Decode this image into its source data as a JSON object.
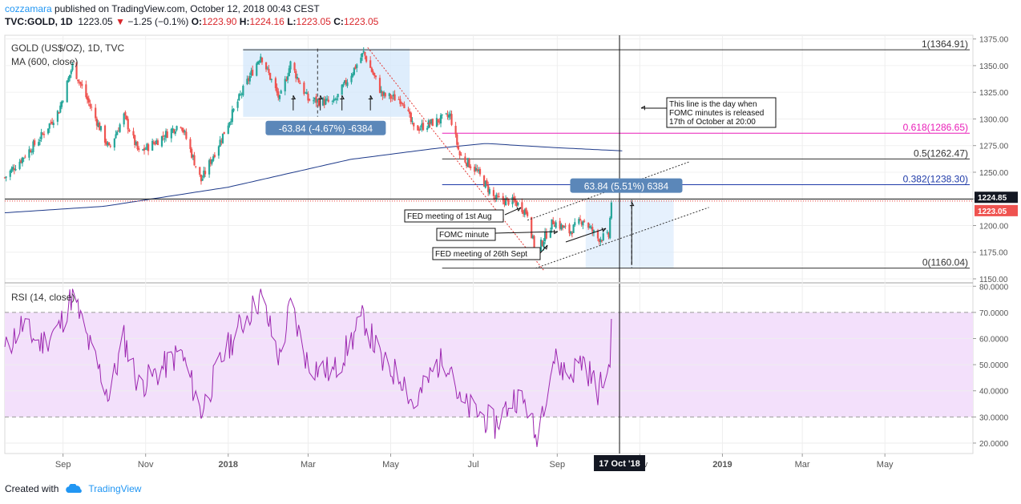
{
  "header": {
    "author": "cozzamara",
    "published": "published on TradingView.com, October 12, 2018 00:43 CEST",
    "symbol": "TVC:GOLD, 1D",
    "price": "1223.05",
    "change_arrow": "▼",
    "change": "−1.25 (−0.1%)",
    "o_label": "O:",
    "o_value": "1223.90",
    "h_label": "H:",
    "h_value": "1224.16",
    "l_label": "L:",
    "l_value": "1223.05",
    "c_label": "C:",
    "c_value": "1223.05"
  },
  "footer": {
    "created_with": "Created with",
    "brand": "TradingView"
  },
  "colors": {
    "up": "#26a69a",
    "down": "#ef5350",
    "ma": "#1e3a8a",
    "rsi": "#9c27b0",
    "rsi_band": "#f3e0fb",
    "fib_pink": "#e91eb8",
    "fib_blue": "#1e3aa8",
    "box": "#d6e8fb",
    "label_blue": "#5b87b9"
  },
  "chart_data": [
    {
      "type": "candlestick",
      "title": "GOLD (US$/OZ), 1D, TVC",
      "indicator": "MA (600, close)",
      "ylim": [
        1147,
        1377
      ],
      "y_ticks": [
        "1375.00",
        "1350.00",
        "1325.00",
        "1300.00",
        "1275.00",
        "1250.00",
        "1225.00",
        "1200.00",
        "1175.00",
        "1150.00"
      ],
      "y_tick_values": [
        1375,
        1350,
        1325,
        1300,
        1275,
        1250,
        1225,
        1200,
        1175,
        1150
      ],
      "x_ticks": [
        "Sep",
        "Nov",
        "2018",
        "Mar",
        "May",
        "Jul",
        "Sep",
        "Nov",
        "2019",
        "Mar",
        "May"
      ],
      "x_tick_dates": [
        "2017-09-01",
        "2017-11-01",
        "2018-01-01",
        "2018-03-01",
        "2018-05-01",
        "2018-07-01",
        "2018-09-01",
        "2018-11-01",
        "2019-01-01",
        "2019-03-01",
        "2019-05-01"
      ],
      "x_range": [
        "2017-07-20",
        "2019-07-05"
      ],
      "close_path": [
        [
          "2017-07-20",
          1245
        ],
        [
          "2017-08-01",
          1262
        ],
        [
          "2017-08-15",
          1282
        ],
        [
          "2017-08-29",
          1308
        ],
        [
          "2017-09-08",
          1350
        ],
        [
          "2017-09-20",
          1315
        ],
        [
          "2017-10-05",
          1272
        ],
        [
          "2017-10-16",
          1303
        ],
        [
          "2017-10-27",
          1268
        ],
        [
          "2017-11-10",
          1280
        ],
        [
          "2017-11-27",
          1296
        ],
        [
          "2017-12-12",
          1242
        ],
        [
          "2017-12-27",
          1282
        ],
        [
          "2018-01-10",
          1322
        ],
        [
          "2018-01-25",
          1360
        ],
        [
          "2018-02-08",
          1318
        ],
        [
          "2018-02-16",
          1352
        ],
        [
          "2018-03-01",
          1318
        ],
        [
          "2018-03-20",
          1315
        ],
        [
          "2018-04-11",
          1362
        ],
        [
          "2018-04-25",
          1322
        ],
        [
          "2018-05-10",
          1318
        ],
        [
          "2018-05-18",
          1290
        ],
        [
          "2018-06-04",
          1298
        ],
        [
          "2018-06-14",
          1303
        ],
        [
          "2018-06-21",
          1266
        ],
        [
          "2018-07-03",
          1252
        ],
        [
          "2018-07-17",
          1225
        ],
        [
          "2018-08-01",
          1222
        ],
        [
          "2018-08-10",
          1212
        ],
        [
          "2018-08-16",
          1173
        ],
        [
          "2018-08-29",
          1204
        ],
        [
          "2018-09-10",
          1194
        ],
        [
          "2018-09-20",
          1206
        ],
        [
          "2018-10-01",
          1188
        ],
        [
          "2018-10-09",
          1190
        ],
        [
          "2018-10-11",
          1223
        ]
      ],
      "ma_path": [
        [
          "2017-07-20",
          1212
        ],
        [
          "2017-10-01",
          1218
        ],
        [
          "2018-01-01",
          1236
        ],
        [
          "2018-04-01",
          1262
        ],
        [
          "2018-06-01",
          1272
        ],
        [
          "2018-07-10",
          1277
        ],
        [
          "2018-09-01",
          1273
        ],
        [
          "2018-10-20",
          1270
        ]
      ],
      "last_price": "1223.05",
      "prior_level": "1224.85",
      "fib_levels": [
        {
          "label": "1(1364.91)",
          "value": 1364.91
        },
        {
          "label": "0.618(1286.65)",
          "value": 1286.65
        },
        {
          "label": "0.5(1262.47)",
          "value": 1262.47
        },
        {
          "label": "0.382(1238.30)",
          "value": 1238.3
        },
        {
          "label": "0(1160.04)",
          "value": 1160.04
        }
      ],
      "annotations": [
        {
          "text": "-63.84 (-4.67%) -6384"
        },
        {
          "text": "63.84 (5.51%) 6384"
        },
        {
          "text": "This line is the day when FOMC minutes is released 17th of October at 20:00"
        },
        {
          "text": "FED meeting of 1st Aug"
        },
        {
          "text": "FOMC minute"
        },
        {
          "text": "FED meeting of 26th Sept"
        }
      ],
      "crosshair_date_label": "17 Oct '18"
    },
    {
      "type": "line",
      "title": "RSI (14, close)",
      "ylim": [
        16,
        81
      ],
      "y_ticks": [
        "80.0000",
        "70.0000",
        "60.0000",
        "50.0000",
        "40.0000",
        "30.0000",
        "20.0000"
      ],
      "y_tick_values": [
        80,
        70,
        60,
        50,
        40,
        30,
        20
      ],
      "band": [
        30,
        70
      ],
      "rsi_path": [
        [
          "2017-07-20",
          55
        ],
        [
          "2017-08-01",
          65
        ],
        [
          "2017-08-15",
          58
        ],
        [
          "2017-08-29",
          64
        ],
        [
          "2017-09-08",
          77
        ],
        [
          "2017-09-20",
          58
        ],
        [
          "2017-10-05",
          38
        ],
        [
          "2017-10-16",
          60
        ],
        [
          "2017-10-27",
          42
        ],
        [
          "2017-11-10",
          47
        ],
        [
          "2017-11-27",
          55
        ],
        [
          "2017-12-12",
          32
        ],
        [
          "2017-12-27",
          52
        ],
        [
          "2018-01-10",
          65
        ],
        [
          "2018-01-25",
          76
        ],
        [
          "2018-02-08",
          52
        ],
        [
          "2018-02-16",
          73
        ],
        [
          "2018-03-01",
          50
        ],
        [
          "2018-03-20",
          47
        ],
        [
          "2018-04-11",
          68
        ],
        [
          "2018-04-25",
          50
        ],
        [
          "2018-05-10",
          45
        ],
        [
          "2018-05-18",
          34
        ],
        [
          "2018-06-04",
          50
        ],
        [
          "2018-06-14",
          52
        ],
        [
          "2018-06-21",
          35
        ],
        [
          "2018-07-03",
          32
        ],
        [
          "2018-07-17",
          27
        ],
        [
          "2018-08-01",
          38
        ],
        [
          "2018-08-10",
          34
        ],
        [
          "2018-08-16",
          22
        ],
        [
          "2018-08-29",
          52
        ],
        [
          "2018-09-10",
          46
        ],
        [
          "2018-09-20",
          52
        ],
        [
          "2018-10-01",
          40
        ],
        [
          "2018-10-09",
          48
        ],
        [
          "2018-10-11",
          62
        ]
      ]
    }
  ]
}
